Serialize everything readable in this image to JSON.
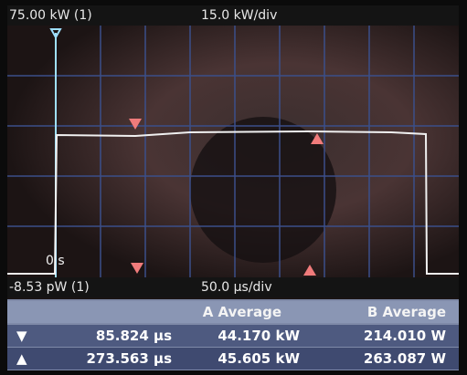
{
  "header": {
    "scale_top": "75.00 kW (1)",
    "vertical_scale": "15.0 kW/div"
  },
  "plot": {
    "time_origin": "0 s"
  },
  "footer": {
    "scale_bottom": "-8.53 pW (1)",
    "horizontal_scale": "50.0 µs/div"
  },
  "table": {
    "columns": [
      "A Average",
      "B Average"
    ],
    "rows": [
      [
        "▼",
        "85.824 µs",
        "44.170 kW",
        "214.010 W"
      ],
      [
        "▲",
        "273.563 µs",
        "45.605 kW",
        "263.087 W"
      ]
    ]
  }
}
